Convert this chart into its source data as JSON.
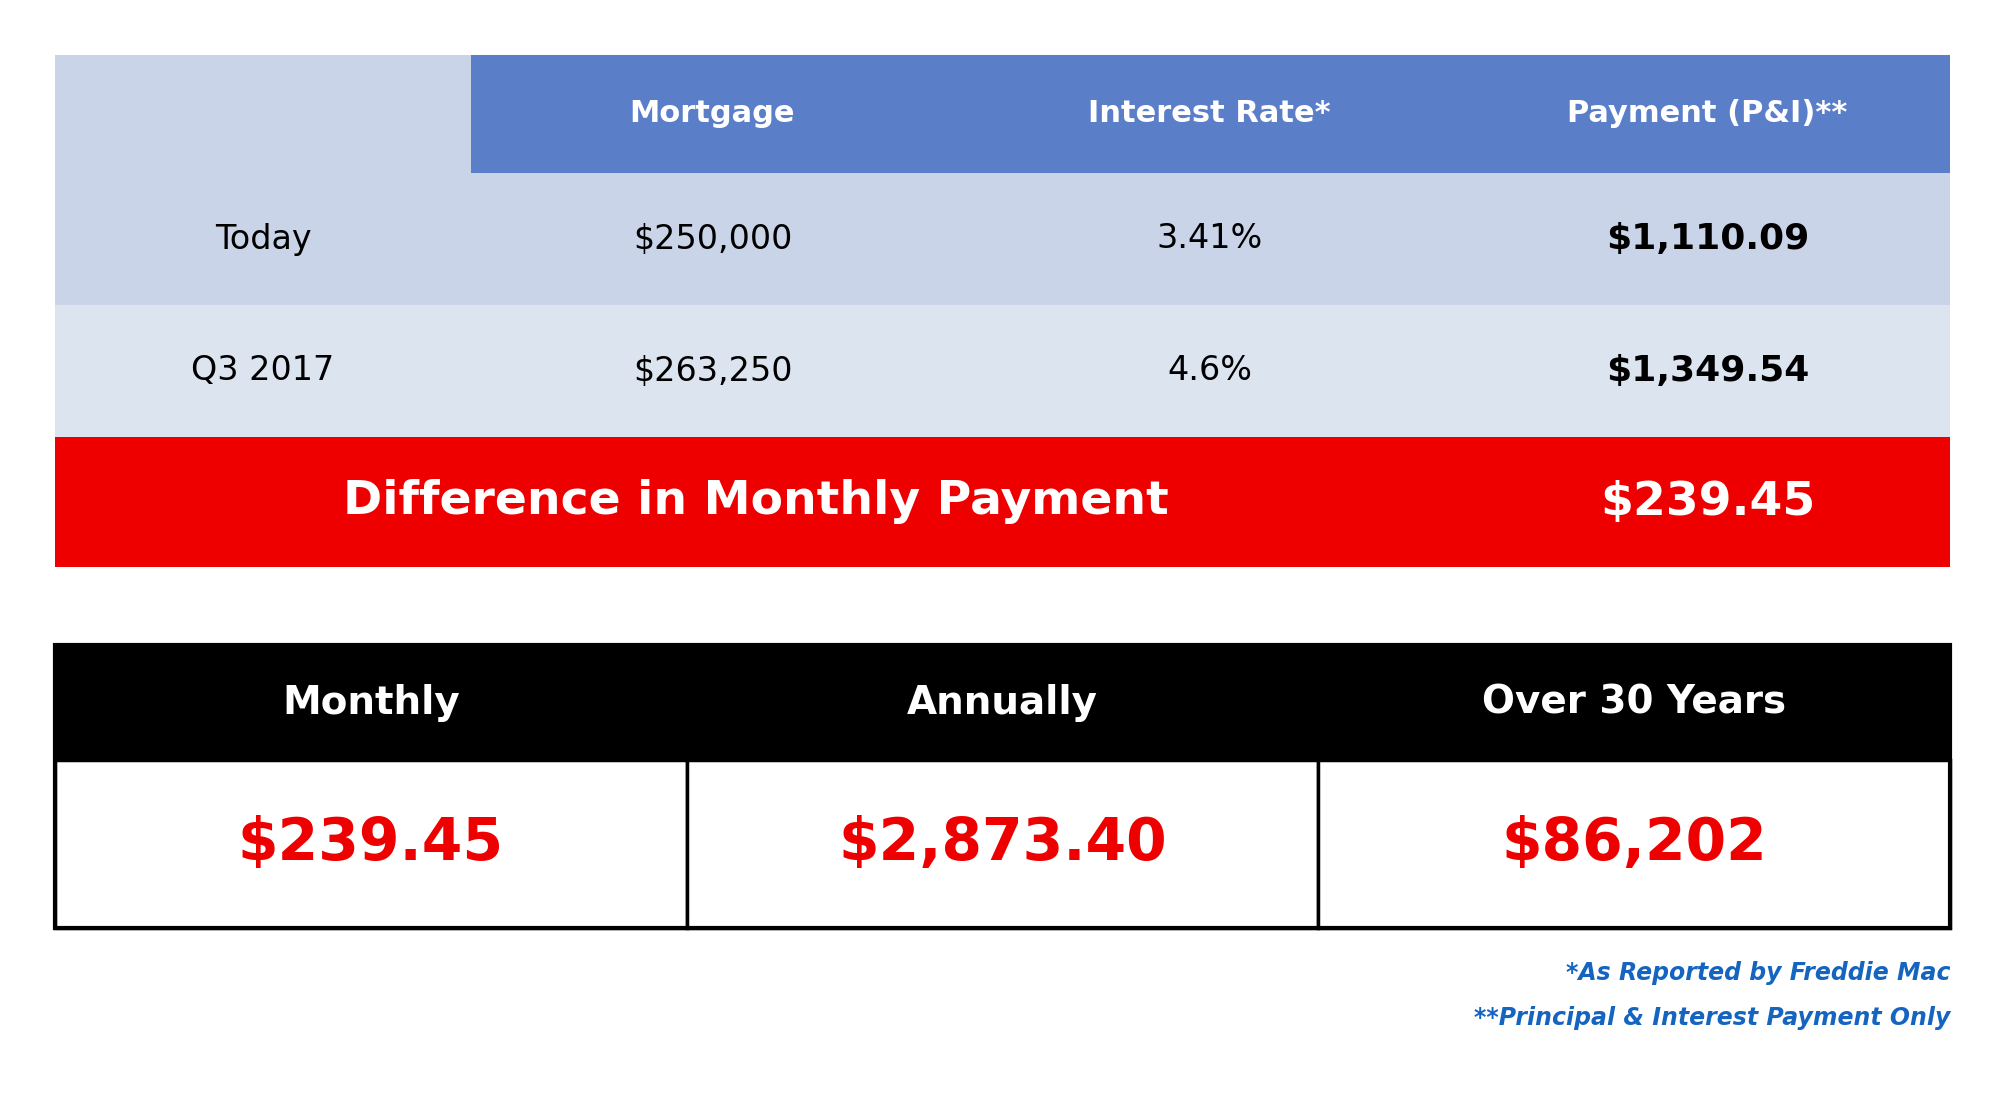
{
  "bg_color": "#ffffff",
  "header_bg": "#5b7ec9",
  "header_text_color": "#ffffff",
  "row1_bg": "#c9d4e8",
  "row2_bg": "#dce4f0",
  "diff_bg": "#ee0000",
  "diff_text_color": "#ffffff",
  "bottom_header_bg": "#000000",
  "bottom_header_text_color": "#ffffff",
  "bottom_value_bg": "#ffffff",
  "bottom_value_text_color": "#ee0000",
  "bottom_border_color": "#000000",
  "note_color": "#1565c0",
  "col_headers": [
    "Mortgage",
    "Interest Rate*",
    "Payment (P&I)**"
  ],
  "row_labels": [
    "Today",
    "Q3 2017"
  ],
  "row1_values": [
    "$250,000",
    "3.41%",
    "$1,110.09"
  ],
  "row2_values": [
    "$263,250",
    "4.6%",
    "$1,349.54"
  ],
  "diff_label": "Difference in Monthly Payment",
  "diff_value": "$239.45",
  "bottom_headers": [
    "Monthly",
    "Annually",
    "Over 30 Years"
  ],
  "bottom_values": [
    "$239.45",
    "$2,873.40",
    "$86,202"
  ],
  "note1": "*As Reported by Freddie Mac",
  "note2": "**Principal & Interest Payment Only",
  "fig_w": 20.0,
  "fig_h": 11.0,
  "dpi": 100
}
